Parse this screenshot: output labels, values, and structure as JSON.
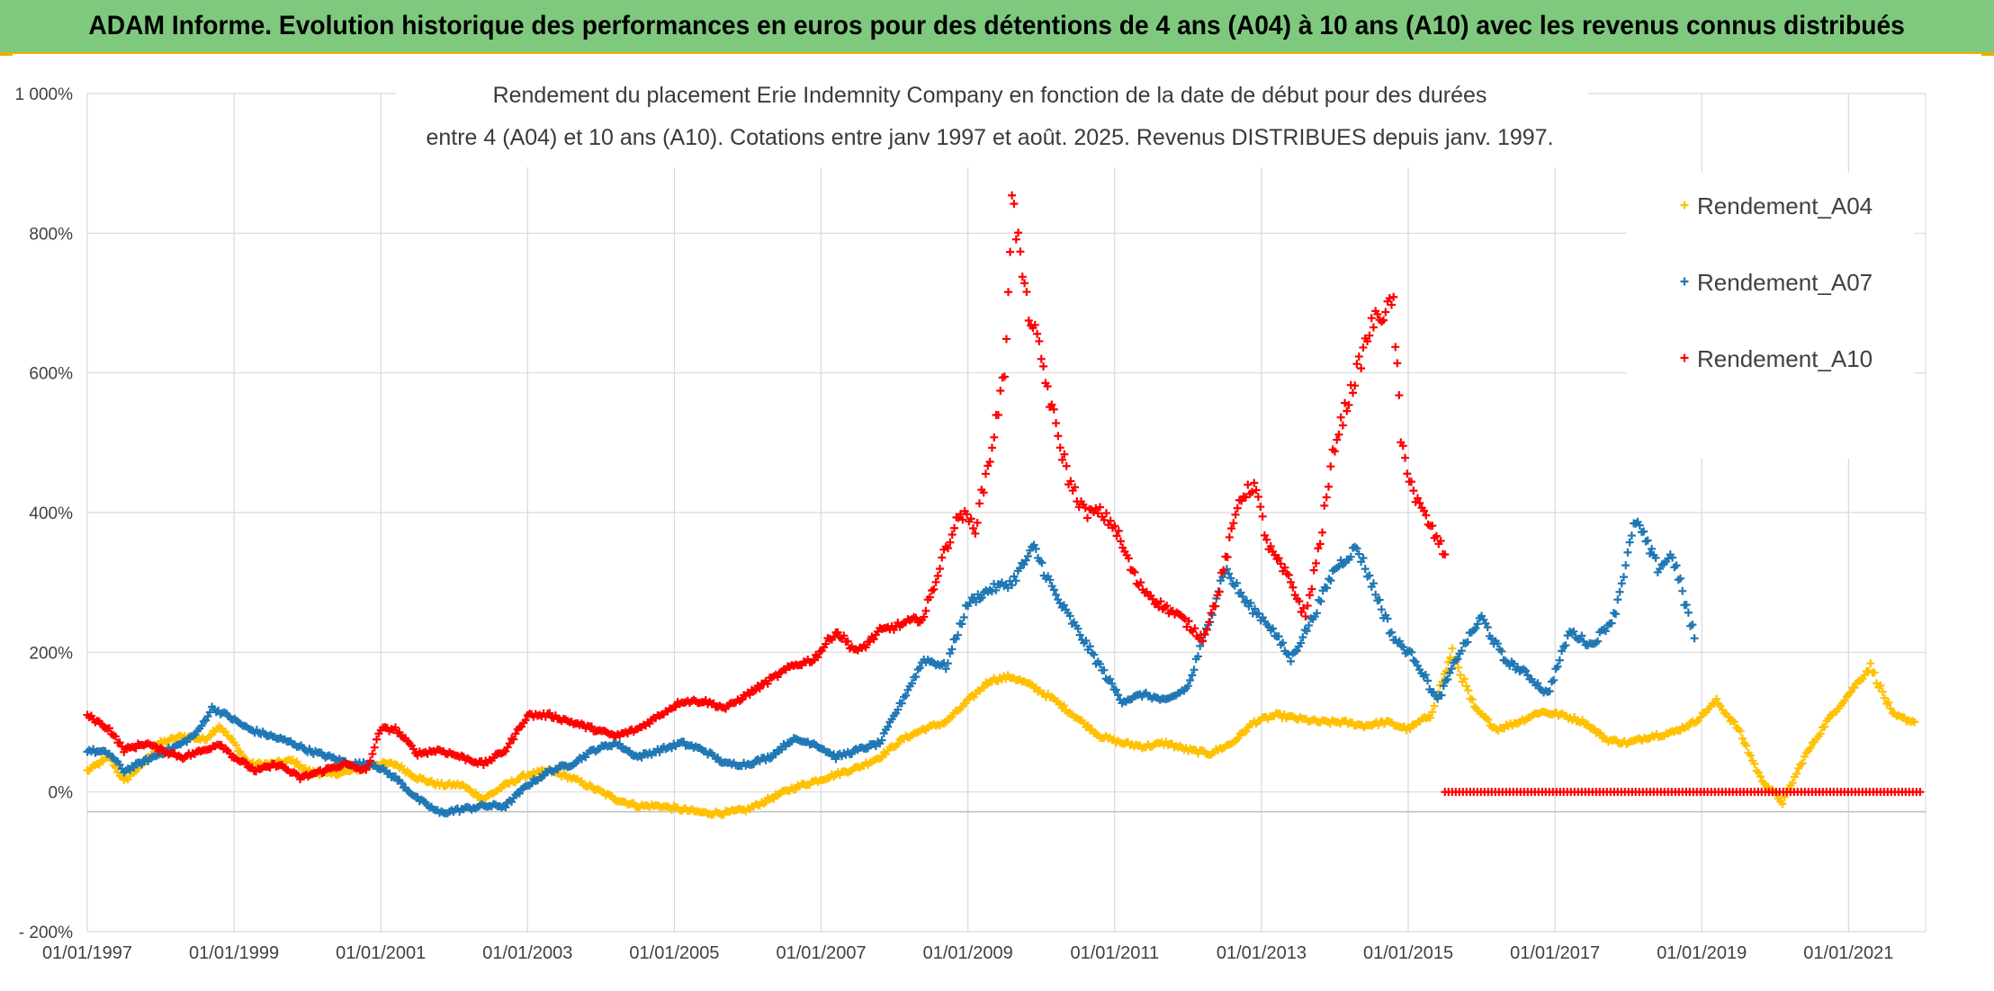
{
  "banner": {
    "title": "ADAM Informe. Evolution historique des performances en euros pour des détentions de 4 ans (A04) à 10 ans (A10) avec les revenus connus distribués"
  },
  "colors": {
    "banner_bg": "#7fc97f",
    "banner_accent": "#e8b000",
    "A04": "#ffc000",
    "A07": "#1f77b4",
    "A10": "#ff0000"
  },
  "chart_data": {
    "type": "scatter",
    "title_lines": [
      "Rendement du placement Erie Indemnity Company en fonction de la date de début pour des durées",
      "entre 4 (A04) et 10 ans (A10). Cotations entre janv 1997 et août. 2025. Revenus DISTRIBUES depuis janv. 1997."
    ],
    "y_ticks": [
      {
        "value": 1000,
        "label": "1 000%"
      },
      {
        "value": 800,
        "label": "800%"
      },
      {
        "value": 600,
        "label": "600%"
      },
      {
        "value": 400,
        "label": "400%"
      },
      {
        "value": 200,
        "label": "200%"
      },
      {
        "value": 0,
        "label": "0%"
      },
      {
        "value": -200,
        "label": "- 200%"
      }
    ],
    "x_ticks": [
      {
        "value": 1997,
        "label": "01/01/1997"
      },
      {
        "value": 1999,
        "label": "01/01/1999"
      },
      {
        "value": 2001,
        "label": "01/01/2001"
      },
      {
        "value": 2003,
        "label": "01/01/2003"
      },
      {
        "value": 2005,
        "label": "01/01/2005"
      },
      {
        "value": 2007,
        "label": "01/01/2007"
      },
      {
        "value": 2009,
        "label": "01/01/2009"
      },
      {
        "value": 2011,
        "label": "01/01/2011"
      },
      {
        "value": 2013,
        "label": "01/01/2013"
      },
      {
        "value": 2015,
        "label": "01/01/2015"
      },
      {
        "value": 2017,
        "label": "01/01/2017"
      },
      {
        "value": 2019,
        "label": "01/01/2019"
      },
      {
        "value": 2021,
        "label": "01/01/2021"
      }
    ],
    "xlim": [
      1997,
      2022.05
    ],
    "ylim": [
      -200,
      1000
    ],
    "grid": true,
    "legend_position": "right",
    "series": [
      {
        "name": "Rendement_A04",
        "color": "#ffc000",
        "points": [
          [
            1997.0,
            30
          ],
          [
            1997.3,
            50
          ],
          [
            1997.5,
            15
          ],
          [
            1997.8,
            45
          ],
          [
            1998.0,
            70
          ],
          [
            1998.3,
            80
          ],
          [
            1998.6,
            75
          ],
          [
            1998.8,
            95
          ],
          [
            1999.0,
            70
          ],
          [
            1999.2,
            40
          ],
          [
            1999.5,
            40
          ],
          [
            1999.8,
            45
          ],
          [
            2000.0,
            30
          ],
          [
            2000.3,
            25
          ],
          [
            2000.6,
            30
          ],
          [
            2000.9,
            40
          ],
          [
            2001.2,
            40
          ],
          [
            2001.5,
            20
          ],
          [
            2001.8,
            10
          ],
          [
            2002.1,
            10
          ],
          [
            2002.4,
            -10
          ],
          [
            2002.7,
            10
          ],
          [
            2003.0,
            25
          ],
          [
            2003.3,
            30
          ],
          [
            2003.6,
            20
          ],
          [
            2003.9,
            5
          ],
          [
            2004.2,
            -10
          ],
          [
            2004.5,
            -20
          ],
          [
            2004.8,
            -20
          ],
          [
            2005.1,
            -25
          ],
          [
            2005.4,
            -30
          ],
          [
            2005.7,
            -30
          ],
          [
            2006.0,
            -25
          ],
          [
            2006.3,
            -10
          ],
          [
            2006.6,
            5
          ],
          [
            2006.9,
            15
          ],
          [
            2007.2,
            25
          ],
          [
            2007.5,
            35
          ],
          [
            2007.8,
            50
          ],
          [
            2008.1,
            75
          ],
          [
            2008.4,
            90
          ],
          [
            2008.7,
            100
          ],
          [
            2009.0,
            130
          ],
          [
            2009.3,
            160
          ],
          [
            2009.6,
            165
          ],
          [
            2009.9,
            150
          ],
          [
            2010.2,
            130
          ],
          [
            2010.5,
            105
          ],
          [
            2010.8,
            80
          ],
          [
            2011.1,
            70
          ],
          [
            2011.4,
            65
          ],
          [
            2011.7,
            70
          ],
          [
            2012.0,
            60
          ],
          [
            2012.3,
            55
          ],
          [
            2012.6,
            70
          ],
          [
            2012.9,
            100
          ],
          [
            2013.2,
            110
          ],
          [
            2013.5,
            105
          ],
          [
            2013.8,
            100
          ],
          [
            2014.1,
            100
          ],
          [
            2014.4,
            95
          ],
          [
            2014.7,
            100
          ],
          [
            2015.0,
            90
          ],
          [
            2015.3,
            110
          ],
          [
            2015.6,
            200
          ],
          [
            2015.9,
            120
          ],
          [
            2016.2,
            90
          ],
          [
            2016.5,
            100
          ],
          [
            2016.8,
            115
          ],
          [
            2017.1,
            110
          ],
          [
            2017.4,
            100
          ],
          [
            2017.7,
            75
          ],
          [
            2018.0,
            70
          ],
          [
            2018.3,
            80
          ],
          [
            2018.6,
            85
          ],
          [
            2018.9,
            100
          ],
          [
            2019.2,
            130
          ],
          [
            2019.5,
            90
          ],
          [
            2019.8,
            20
          ],
          [
            2020.1,
            -15
          ],
          [
            2020.4,
            50
          ],
          [
            2020.7,
            100
          ],
          [
            2021.0,
            140
          ],
          [
            2021.3,
            180
          ],
          [
            2021.6,
            110
          ],
          [
            2021.9,
            100
          ]
        ]
      },
      {
        "name": "Rendement_A07",
        "color": "#1f77b4",
        "points": [
          [
            1997.0,
            60
          ],
          [
            1997.3,
            55
          ],
          [
            1997.5,
            30
          ],
          [
            1997.8,
            45
          ],
          [
            1998.0,
            55
          ],
          [
            1998.3,
            70
          ],
          [
            1998.5,
            85
          ],
          [
            1998.7,
            120
          ],
          [
            1998.9,
            110
          ],
          [
            1999.2,
            90
          ],
          [
            1999.5,
            80
          ],
          [
            1999.8,
            70
          ],
          [
            2000.0,
            60
          ],
          [
            2000.3,
            50
          ],
          [
            2000.6,
            40
          ],
          [
            2000.9,
            40
          ],
          [
            2001.2,
            20
          ],
          [
            2001.5,
            -10
          ],
          [
            2001.8,
            -30
          ],
          [
            2002.1,
            -25
          ],
          [
            2002.4,
            -20
          ],
          [
            2002.7,
            -20
          ],
          [
            2003.0,
            10
          ],
          [
            2003.3,
            30
          ],
          [
            2003.6,
            40
          ],
          [
            2003.9,
            60
          ],
          [
            2004.2,
            70
          ],
          [
            2004.5,
            50
          ],
          [
            2004.8,
            60
          ],
          [
            2005.1,
            70
          ],
          [
            2005.4,
            60
          ],
          [
            2005.7,
            40
          ],
          [
            2006.0,
            40
          ],
          [
            2006.3,
            50
          ],
          [
            2006.6,
            75
          ],
          [
            2006.9,
            70
          ],
          [
            2007.2,
            50
          ],
          [
            2007.5,
            60
          ],
          [
            2007.8,
            70
          ],
          [
            2008.1,
            130
          ],
          [
            2008.4,
            190
          ],
          [
            2008.7,
            180
          ],
          [
            2009.0,
            270
          ],
          [
            2009.3,
            290
          ],
          [
            2009.6,
            300
          ],
          [
            2009.9,
            350
          ],
          [
            2010.2,
            280
          ],
          [
            2010.5,
            230
          ],
          [
            2010.8,
            180
          ],
          [
            2011.1,
            130
          ],
          [
            2011.4,
            140
          ],
          [
            2011.7,
            130
          ],
          [
            2012.0,
            150
          ],
          [
            2012.3,
            250
          ],
          [
            2012.5,
            320
          ],
          [
            2012.8,
            270
          ],
          [
            2013.1,
            240
          ],
          [
            2013.4,
            190
          ],
          [
            2013.7,
            250
          ],
          [
            2014.0,
            320
          ],
          [
            2014.3,
            350
          ],
          [
            2014.5,
            300
          ],
          [
            2014.8,
            220
          ],
          [
            2015.1,
            190
          ],
          [
            2015.4,
            130
          ],
          [
            2015.7,
            200
          ],
          [
            2016.0,
            250
          ],
          [
            2016.3,
            190
          ],
          [
            2016.6,
            170
          ],
          [
            2016.9,
            140
          ],
          [
            2017.2,
            230
          ],
          [
            2017.5,
            210
          ],
          [
            2017.8,
            250
          ],
          [
            2018.1,
            390
          ],
          [
            2018.4,
            320
          ],
          [
            2018.6,
            340
          ],
          [
            2018.9,
            220
          ]
        ]
      },
      {
        "name": "Rendement_A10",
        "color": "#ff0000",
        "points": [
          [
            1997.0,
            110
          ],
          [
            1997.3,
            90
          ],
          [
            1997.5,
            60
          ],
          [
            1997.8,
            70
          ],
          [
            1998.0,
            60
          ],
          [
            1998.3,
            50
          ],
          [
            1998.6,
            60
          ],
          [
            1998.8,
            70
          ],
          [
            1999.0,
            50
          ],
          [
            1999.3,
            30
          ],
          [
            1999.6,
            40
          ],
          [
            1999.9,
            20
          ],
          [
            2000.2,
            30
          ],
          [
            2000.5,
            40
          ],
          [
            2000.8,
            30
          ],
          [
            2001.0,
            90
          ],
          [
            2001.2,
            90
          ],
          [
            2001.5,
            55
          ],
          [
            2001.8,
            60
          ],
          [
            2002.1,
            50
          ],
          [
            2002.4,
            40
          ],
          [
            2002.7,
            60
          ],
          [
            2003.0,
            110
          ],
          [
            2003.3,
            110
          ],
          [
            2003.6,
            100
          ],
          [
            2003.9,
            90
          ],
          [
            2004.2,
            80
          ],
          [
            2004.5,
            90
          ],
          [
            2004.8,
            110
          ],
          [
            2005.1,
            130
          ],
          [
            2005.4,
            130
          ],
          [
            2005.7,
            120
          ],
          [
            2006.0,
            140
          ],
          [
            2006.3,
            160
          ],
          [
            2006.6,
            180
          ],
          [
            2006.9,
            190
          ],
          [
            2007.2,
            230
          ],
          [
            2007.5,
            200
          ],
          [
            2007.8,
            230
          ],
          [
            2008.1,
            240
          ],
          [
            2008.4,
            250
          ],
          [
            2008.7,
            350
          ],
          [
            2008.9,
            400
          ],
          [
            2009.1,
            380
          ],
          [
            2009.3,
            480
          ],
          [
            2009.5,
            600
          ],
          [
            2009.6,
            850
          ],
          [
            2009.8,
            700
          ],
          [
            2010.0,
            620
          ],
          [
            2010.2,
            520
          ],
          [
            2010.4,
            440
          ],
          [
            2010.6,
            400
          ],
          [
            2010.8,
            400
          ],
          [
            2011.0,
            380
          ],
          [
            2011.3,
            300
          ],
          [
            2011.6,
            270
          ],
          [
            2011.9,
            250
          ],
          [
            2012.2,
            220
          ],
          [
            2012.4,
            280
          ],
          [
            2012.7,
            420
          ],
          [
            2012.9,
            440
          ],
          [
            2013.1,
            350
          ],
          [
            2013.4,
            300
          ],
          [
            2013.6,
            250
          ],
          [
            2013.8,
            360
          ],
          [
            2014.0,
            500
          ],
          [
            2014.3,
            600
          ],
          [
            2014.5,
            670
          ],
          [
            2014.8,
            700
          ],
          [
            2014.9,
            500
          ],
          [
            2015.1,
            420
          ],
          [
            2015.3,
            380
          ],
          [
            2015.5,
            340
          ]
        ]
      },
      {
        "name": "",
        "color": "#ff0000",
        "points": [
          [
            2015.5,
            0
          ],
          [
            2022.0,
            0
          ]
        ],
        "style": "flat-line"
      }
    ]
  }
}
